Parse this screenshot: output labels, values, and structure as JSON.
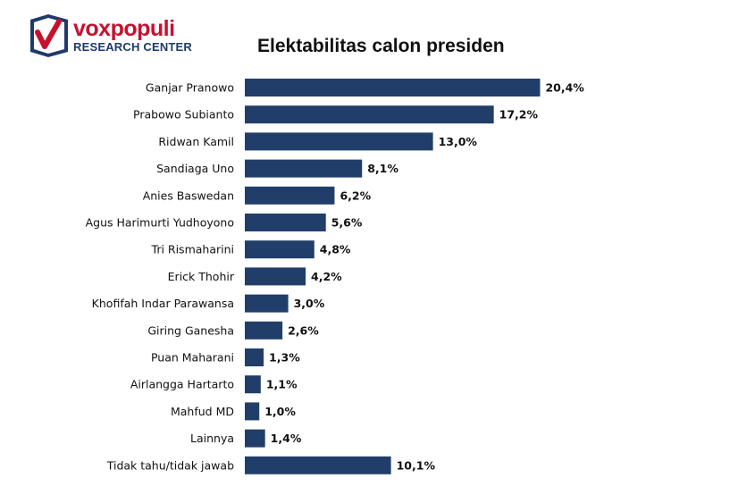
{
  "logo": {
    "brand": "voxpopuli",
    "subtitle": "RESEARCH CENTER",
    "colors": {
      "red": "#c8102e",
      "navy": "#1f3a6b"
    }
  },
  "chart_data": {
    "type": "bar",
    "orientation": "horizontal",
    "title": "Elektabilitas calon presiden",
    "categories": [
      "Ganjar Pranowo",
      "Prabowo Subianto",
      "Ridwan Kamil",
      "Sandiaga Uno",
      "Anies Baswedan",
      "Agus Harimurti Yudhoyono",
      "Tri Rismaharini",
      "Erick Thohir",
      "Khofifah Indar Parawansa",
      "Giring Ganesha",
      "Puan Maharani",
      "Airlangga Hartarto",
      "Mahfud MD",
      "Lainnya",
      "Tidak tahu/tidak jawab"
    ],
    "values": [
      20.4,
      17.2,
      13.0,
      8.1,
      6.2,
      5.6,
      4.8,
      4.2,
      3.0,
      2.6,
      1.3,
      1.1,
      1.0,
      1.4,
      10.1
    ],
    "value_labels": [
      "20,4%",
      "17,2%",
      "13,0%",
      "8,1%",
      "6,2%",
      "5,6%",
      "4,8%",
      "4,2%",
      "3,0%",
      "2,6%",
      "1,3%",
      "1,1%",
      "1,0%",
      "1,4%",
      "10,1%"
    ],
    "unit": "%",
    "bar_color": "#213e6b",
    "grid": false,
    "legend": "none"
  }
}
